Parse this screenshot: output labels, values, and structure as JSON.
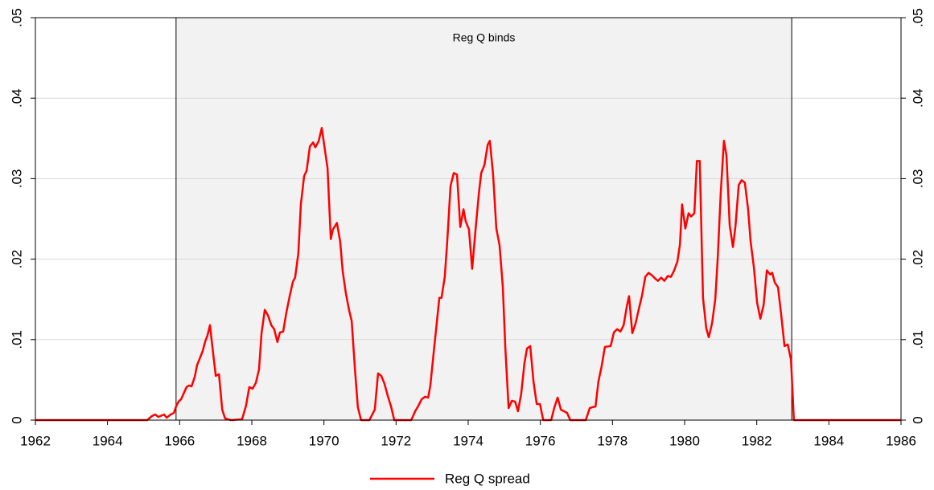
{
  "chart_data": {
    "type": "line",
    "annotation": "Reg Q binds",
    "shaded_span": [
      1965.9,
      1982.97
    ],
    "xlim": [
      1962,
      1986
    ],
    "xticks": [
      1962,
      1964,
      1966,
      1968,
      1970,
      1972,
      1974,
      1976,
      1978,
      1980,
      1982,
      1984,
      1986
    ],
    "ylim": [
      0,
      0.05
    ],
    "yticks": [
      0,
      {
        "value": 0.01,
        "label": ".01"
      },
      {
        "value": 0.02,
        "label": ".02"
      },
      {
        "value": 0.03,
        "label": ".03"
      },
      {
        "value": 0.04,
        "label": ".04"
      },
      {
        "value": 0.05,
        "label": ".05"
      }
    ],
    "grid": true,
    "legend": "bottom",
    "x": [
      1962.0,
      1965.1,
      1965.23,
      1965.32,
      1965.41,
      1965.57,
      1965.64,
      1965.75,
      1965.84,
      1965.9,
      1965.97,
      1966.04,
      1966.13,
      1966.19,
      1966.26,
      1966.33,
      1966.42,
      1966.48,
      1966.57,
      1966.64,
      1966.71,
      1966.77,
      1966.84,
      1966.91,
      1967.0,
      1967.09,
      1967.18,
      1967.26,
      1967.42,
      1967.73,
      1967.84,
      1967.93,
      1968.02,
      1968.11,
      1968.2,
      1968.27,
      1968.36,
      1968.45,
      1968.54,
      1968.62,
      1968.71,
      1968.78,
      1968.87,
      1968.96,
      1969.05,
      1969.14,
      1969.2,
      1969.29,
      1969.36,
      1969.45,
      1969.52,
      1969.61,
      1969.7,
      1969.76,
      1969.85,
      1969.94,
      1970.01,
      1970.1,
      1970.19,
      1970.25,
      1970.36,
      1970.45,
      1970.52,
      1970.61,
      1970.7,
      1970.77,
      1970.86,
      1970.94,
      1971.03,
      1971.26,
      1971.41,
      1971.5,
      1971.59,
      1971.68,
      1971.77,
      1971.86,
      1971.95,
      1972.42,
      1972.53,
      1972.62,
      1972.71,
      1972.8,
      1972.89,
      1972.95,
      1973.02,
      1973.11,
      1973.2,
      1973.26,
      1973.35,
      1973.42,
      1973.51,
      1973.6,
      1973.69,
      1973.78,
      1973.87,
      1973.93,
      1974.02,
      1974.11,
      1974.2,
      1974.29,
      1974.36,
      1974.45,
      1974.54,
      1974.6,
      1974.69,
      1974.78,
      1974.87,
      1974.96,
      1975.03,
      1975.12,
      1975.21,
      1975.3,
      1975.38,
      1975.47,
      1975.56,
      1975.63,
      1975.72,
      1975.81,
      1975.9,
      1975.99,
      1976.08,
      1976.3,
      1976.39,
      1976.48,
      1976.57,
      1976.66,
      1976.74,
      1976.83,
      1977.26,
      1977.37,
      1977.53,
      1977.61,
      1977.7,
      1977.79,
      1977.95,
      1978.04,
      1978.13,
      1978.22,
      1978.31,
      1978.4,
      1978.46,
      1978.55,
      1978.64,
      1978.73,
      1978.82,
      1978.91,
      1979.0,
      1979.09,
      1979.18,
      1979.26,
      1979.35,
      1979.44,
      1979.53,
      1979.62,
      1979.71,
      1979.8,
      1979.87,
      1979.93,
      1980.02,
      1980.11,
      1980.18,
      1980.27,
      1980.34,
      1980.42,
      1980.51,
      1980.6,
      1980.67,
      1980.76,
      1980.85,
      1980.92,
      1981.0,
      1981.09,
      1981.16,
      1981.25,
      1981.34,
      1981.41,
      1981.5,
      1981.58,
      1981.67,
      1981.76,
      1981.83,
      1981.92,
      1982.01,
      1982.1,
      1982.19,
      1982.28,
      1982.37,
      1982.43,
      1982.5,
      1982.59,
      1982.68,
      1982.77,
      1982.86,
      1982.95,
      1983.03,
      1986.0
    ],
    "series": [
      {
        "name": "Reg Q spread",
        "color": "#ff0000",
        "values": [
          0,
          0,
          0.0005,
          0.0007,
          0.0004,
          0.0007,
          0.0003,
          0.0007,
          0.0009,
          0.0017,
          0.0023,
          0.0026,
          0.0035,
          0.0041,
          0.0043,
          0.0042,
          0.0054,
          0.0068,
          0.0078,
          0.0086,
          0.0098,
          0.0105,
          0.0118,
          0.009,
          0.0055,
          0.0057,
          0.0013,
          0.0002,
          0,
          0.0001,
          0.0018,
          0.0041,
          0.0039,
          0.0046,
          0.0063,
          0.0108,
          0.0137,
          0.013,
          0.0118,
          0.0113,
          0.0097,
          0.0109,
          0.011,
          0.0134,
          0.0154,
          0.0172,
          0.0177,
          0.0207,
          0.0268,
          0.0303,
          0.031,
          0.034,
          0.0345,
          0.0339,
          0.0346,
          0.0363,
          0.0341,
          0.0313,
          0.0225,
          0.0237,
          0.0245,
          0.0222,
          0.0185,
          0.0157,
          0.0136,
          0.0123,
          0.0063,
          0.0016,
          0,
          0,
          0.0013,
          0.0058,
          0.0055,
          0.0045,
          0.003,
          0.0017,
          0,
          0,
          0.0011,
          0.0018,
          0.0026,
          0.0029,
          0.0028,
          0.0043,
          0.0074,
          0.0113,
          0.0152,
          0.0152,
          0.0178,
          0.0223,
          0.0291,
          0.0307,
          0.0305,
          0.024,
          0.0262,
          0.0247,
          0.0237,
          0.0188,
          0.0235,
          0.0279,
          0.0307,
          0.0317,
          0.0342,
          0.0347,
          0.0305,
          0.0238,
          0.0217,
          0.0165,
          0.0089,
          0.0015,
          0.0024,
          0.0023,
          0.0011,
          0.0033,
          0.0071,
          0.0089,
          0.0092,
          0.0048,
          0.002,
          0.002,
          0,
          0,
          0.0016,
          0.0028,
          0.0013,
          0.0011,
          0.0009,
          0,
          0,
          0.0015,
          0.0017,
          0.0048,
          0.0067,
          0.0091,
          0.0092,
          0.0109,
          0.0113,
          0.011,
          0.0118,
          0.0142,
          0.0154,
          0.0108,
          0.012,
          0.0138,
          0.0155,
          0.0178,
          0.0183,
          0.018,
          0.0176,
          0.0173,
          0.0177,
          0.0173,
          0.0179,
          0.0178,
          0.0186,
          0.0197,
          0.0218,
          0.0268,
          0.0238,
          0.0257,
          0.0253,
          0.0257,
          0.0322,
          0.0322,
          0.0152,
          0.0114,
          0.0103,
          0.012,
          0.015,
          0.0203,
          0.0281,
          0.0347,
          0.0329,
          0.0242,
          0.0215,
          0.0241,
          0.0292,
          0.0298,
          0.0295,
          0.0262,
          0.0222,
          0.019,
          0.0146,
          0.0126,
          0.0143,
          0.0186,
          0.0181,
          0.0183,
          0.0171,
          0.0165,
          0.013,
          0.0092,
          0.0094,
          0.0075,
          0,
          0
        ]
      }
    ]
  }
}
